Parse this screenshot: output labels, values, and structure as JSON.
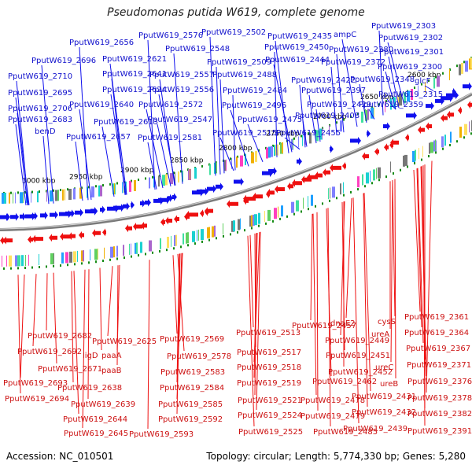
{
  "title": "Pseudomonas putida W619, complete genome",
  "footer": {
    "accession": "Accession: NC_010501",
    "summary": "Topology: circular; Length: 5,774,330 bp; Genes: 5,280"
  },
  "colors": {
    "forward": "#1010ee",
    "reverse": "#ee1010",
    "backbone": "#888888",
    "ticks": "#138a13"
  },
  "kbp_ticks": [
    "3000 kbp",
    "2950 kbp",
    "2900 kbp",
    "2850 kbp",
    "2800 kbp",
    "2750 kbp",
    "2700 kbp",
    "2650 kbp",
    "2600 kbp"
  ],
  "top_labels": [
    "PputW619_2303",
    "PputW619_2502",
    "PputW619_2576",
    "PputW619_2656",
    "PputW619_2435",
    "ampC",
    "PputW619_2302",
    "PputW619_2450",
    "PputW619_2380",
    "PputW619_2548",
    "PputW619_2301",
    "PputW619_2696",
    "PputW619_2621",
    "PputW619_2444",
    "PputW619_2509",
    "PputW619_2372",
    "PputW619_2300",
    "PputW619_2710",
    "PputW619_2641",
    "PputW619_2557",
    "PputW619_2488",
    "PputW619_2422",
    "PputW619_2348",
    "glcF",
    "PputW619_2695",
    "PputW619_2624",
    "PputW619_2556",
    "PputW619_2484",
    "PputW619_2397",
    "PputW619_2315",
    "PputW619_2706",
    "PputW619_2640",
    "PputW619_2572",
    "PputW619_2496",
    "PputW619_2429",
    "PputW619_2359",
    "PputW619_2683",
    "PputW619_2613",
    "PputW619_2547",
    "PputW619_2475",
    "PputW619_2408",
    "benD",
    "PputW619_2657",
    "PputW619_2581",
    "PputW619_2515",
    "PputW619_2455"
  ],
  "bottom_labels": [
    "PputW619_2361",
    "cysS",
    "PputW619_2457",
    "dnaE2",
    "PputW619_2513",
    "PputW619_2682",
    "PputW619_2625",
    "PputW619_2569",
    "ureA",
    "PputW619_2449",
    "PputW619_2364",
    "PputW619_2517",
    "PputW619_2692",
    "PputW619_2367",
    "ligD",
    "paaA",
    "PputW619_2578",
    "PputW619_2451",
    "ureC",
    "PputW619_2518",
    "PputW619_2671",
    "paaB",
    "PputW619_2583",
    "PputW619_2371",
    "PputW619_2452",
    "PputW619_2693",
    "PputW619_2462",
    "ureB",
    "PputW619_2519",
    "PputW619_2376",
    "PputW619_2638",
    "PputW619_2584",
    "PputW619_2431",
    "PputW619_2694",
    "PputW619_2521",
    "PputW619_2378",
    "PputW619_2478",
    "PputW619_2639",
    "PputW619_2585",
    "PputW619_2432",
    "PputW619_2382",
    "PputW619_2524",
    "PputW619_2644",
    "PputW619_2479",
    "PputW619_2592",
    "PputW619_2439",
    "PputW619_2391",
    "PputW619_2645",
    "PputW619_2525",
    "PputW619_2485",
    "PputW619_2593"
  ]
}
